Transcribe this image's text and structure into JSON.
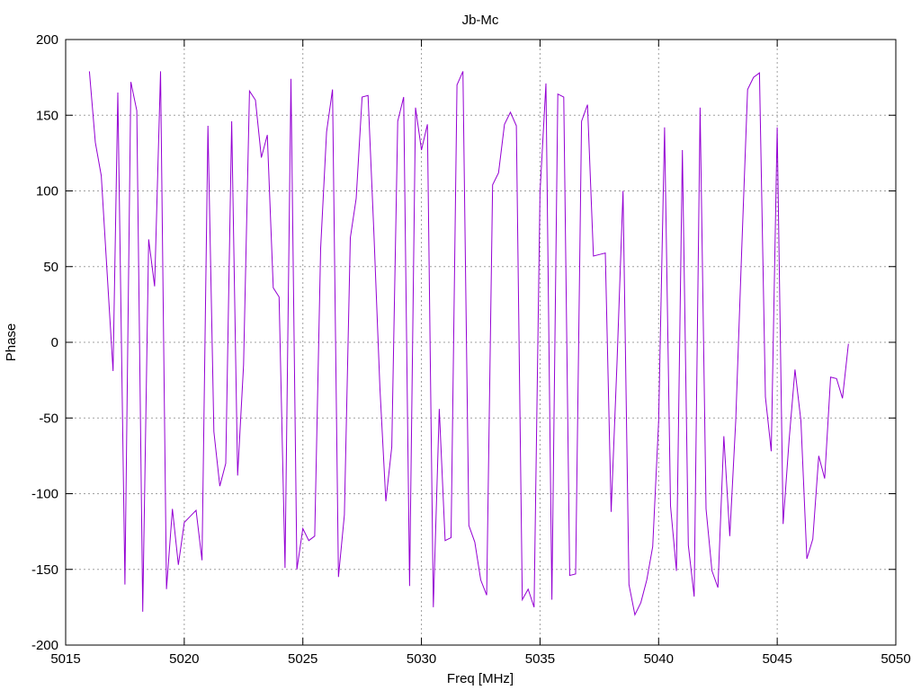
{
  "chart_data": {
    "type": "line",
    "title": "Jb-Mc",
    "xlabel": "Freq [MHz]",
    "ylabel": "Phase",
    "xlim": [
      5015,
      5050
    ],
    "ylim": [
      -200,
      200
    ],
    "x_ticks": [
      5015,
      5020,
      5025,
      5030,
      5035,
      5040,
      5045,
      5050
    ],
    "y_ticks": [
      -200,
      -150,
      -100,
      -50,
      0,
      50,
      100,
      150,
      200
    ],
    "grid": true,
    "series": [
      {
        "color": "#9400d3",
        "x": [
          5016.0,
          5016.25,
          5016.5,
          5016.75,
          5017.0,
          5017.2,
          5017.5,
          5017.75,
          5018.0,
          5018.25,
          5018.5,
          5018.75,
          5019.0,
          5019.25,
          5019.5,
          5019.75,
          5020.0,
          5020.25,
          5020.5,
          5020.75,
          5021.0,
          5021.25,
          5021.5,
          5021.75,
          5022.0,
          5022.25,
          5022.5,
          5022.75,
          5023.0,
          5023.25,
          5023.5,
          5023.75,
          5024.0,
          5024.25,
          5024.5,
          5024.75,
          5025.0,
          5025.25,
          5025.5,
          5025.75,
          5026.0,
          5026.25,
          5026.5,
          5026.75,
          5027.0,
          5027.25,
          5027.5,
          5027.75,
          5028.0,
          5028.25,
          5028.5,
          5028.75,
          5029.0,
          5029.25,
          5029.5,
          5029.75,
          5030.0,
          5030.25,
          5030.5,
          5030.75,
          5031.0,
          5031.25,
          5031.5,
          5031.75,
          5032.0,
          5032.25,
          5032.5,
          5032.75,
          5033.0,
          5033.25,
          5033.5,
          5033.75,
          5034.0,
          5034.25,
          5034.5,
          5034.75,
          5035.0,
          5035.25,
          5035.5,
          5035.75,
          5036.0,
          5036.25,
          5036.5,
          5036.75,
          5037.0,
          5037.25,
          5037.5,
          5037.75,
          5038.0,
          5038.25,
          5038.5,
          5038.75,
          5039.0,
          5039.25,
          5039.5,
          5039.75,
          5040.0,
          5040.25,
          5040.5,
          5040.75,
          5041.0,
          5041.25,
          5041.5,
          5041.75,
          5042.0,
          5042.25,
          5042.5,
          5042.75,
          5043.0,
          5043.25,
          5043.5,
          5043.75,
          5044.0,
          5044.25,
          5044.5,
          5044.75,
          5045.0,
          5045.25,
          5045.5,
          5045.75,
          5046.0,
          5046.25,
          5046.5,
          5046.75,
          5047.0,
          5047.25,
          5047.5,
          5047.75,
          5048.0
        ],
        "y": [
          179,
          132,
          110,
          45,
          -19,
          165,
          -160,
          172,
          153,
          -178,
          68,
          37,
          179,
          -163,
          -110,
          -147,
          -119,
          -115,
          -111,
          -144,
          143,
          -59,
          -95,
          -80,
          146,
          -88,
          -15,
          166,
          160,
          122,
          137,
          36,
          30,
          -149,
          174,
          -150,
          -123,
          -131,
          -128,
          62,
          139,
          167,
          -155,
          -114,
          69,
          95,
          162,
          163,
          71,
          -30,
          -105,
          -69,
          146,
          162,
          -161,
          155,
          127,
          144,
          -175,
          -44,
          -131,
          -129,
          170,
          179,
          -121,
          -132,
          -157,
          -167,
          104,
          112,
          144,
          152,
          143,
          -170,
          -163,
          -175,
          99,
          171,
          -170,
          164,
          162,
          -154,
          -153,
          146,
          157,
          57,
          58,
          59,
          -112,
          -12,
          100,
          -160,
          -180,
          -172,
          -157,
          -135,
          -52,
          142,
          -108,
          -151,
          127,
          -134,
          -168,
          155,
          -110,
          -151,
          -162,
          -62,
          -128,
          -52,
          60,
          167,
          175,
          178,
          -36,
          -72,
          142,
          -120,
          -65,
          -18,
          -52,
          -143,
          -130,
          -75,
          -90,
          -23,
          -24,
          -37,
          -1
        ]
      }
    ]
  }
}
